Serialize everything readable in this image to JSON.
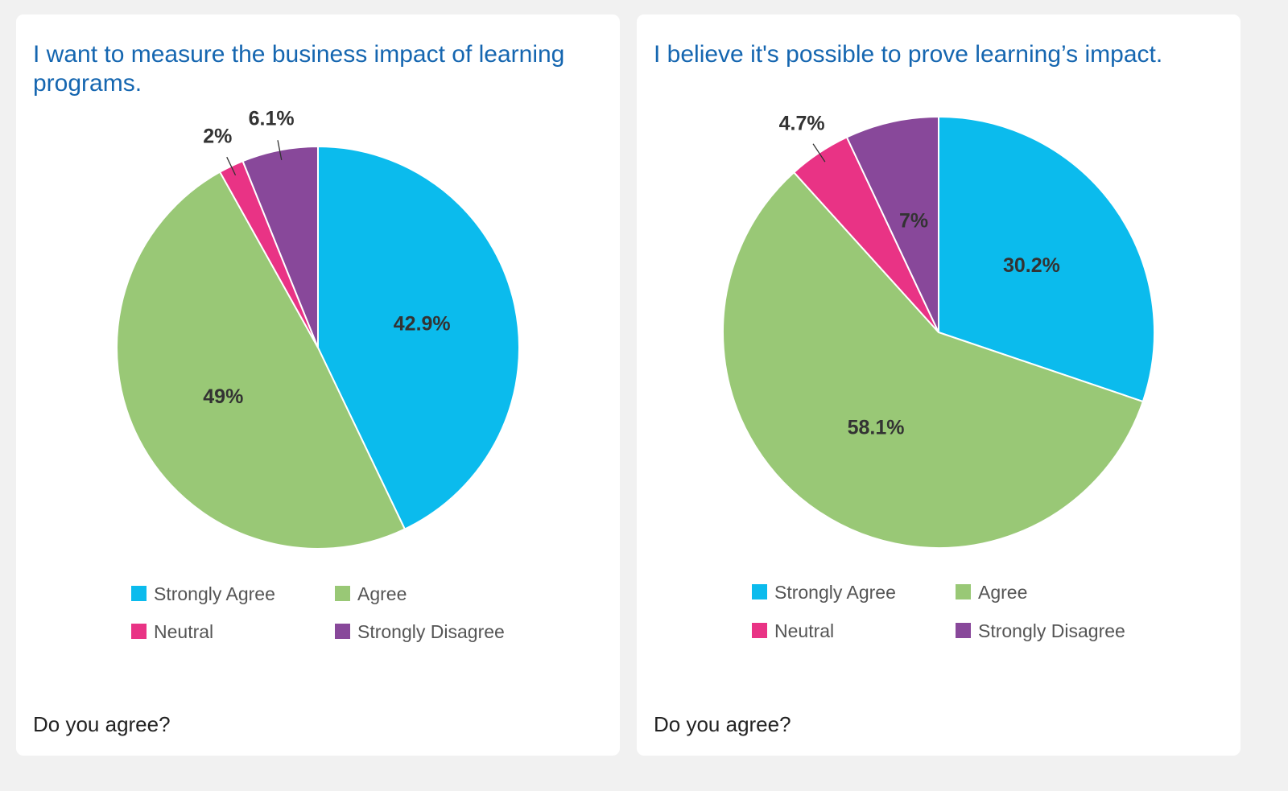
{
  "colors": {
    "strongly_agree": "#0bbbed",
    "agree": "#99c876",
    "neutral": "#e93385",
    "strongly_disagree": "#88489a",
    "title": "#1566b0"
  },
  "chart_data": [
    {
      "type": "pie",
      "title": "I want to measure the business impact of learning programs.",
      "footer": "Do you agree?",
      "legend_position": "bottom",
      "slices": [
        {
          "label": "Strongly Agree",
          "value": 42.9,
          "display": "42.9%",
          "color": "#0bbbed"
        },
        {
          "label": "Agree",
          "value": 49,
          "display": "49%",
          "color": "#99c876"
        },
        {
          "label": "Neutral",
          "value": 2,
          "display": "2%",
          "color": "#e93385"
        },
        {
          "label": "Strongly Disagree",
          "value": 6.1,
          "display": "6.1%",
          "color": "#88489a"
        }
      ]
    },
    {
      "type": "pie",
      "title": "I believe it's possible to prove learning’s impact.",
      "footer": "Do you agree?",
      "legend_position": "bottom",
      "slices": [
        {
          "label": "Strongly Agree",
          "value": 30.2,
          "display": "30.2%",
          "color": "#0bbbed"
        },
        {
          "label": "Agree",
          "value": 58.1,
          "display": "58.1%",
          "color": "#99c876"
        },
        {
          "label": "Neutral",
          "value": 4.7,
          "display": "4.7%",
          "color": "#e93385"
        },
        {
          "label": "Strongly Disagree",
          "value": 7,
          "display": "7%",
          "color": "#88489a"
        }
      ]
    }
  ]
}
